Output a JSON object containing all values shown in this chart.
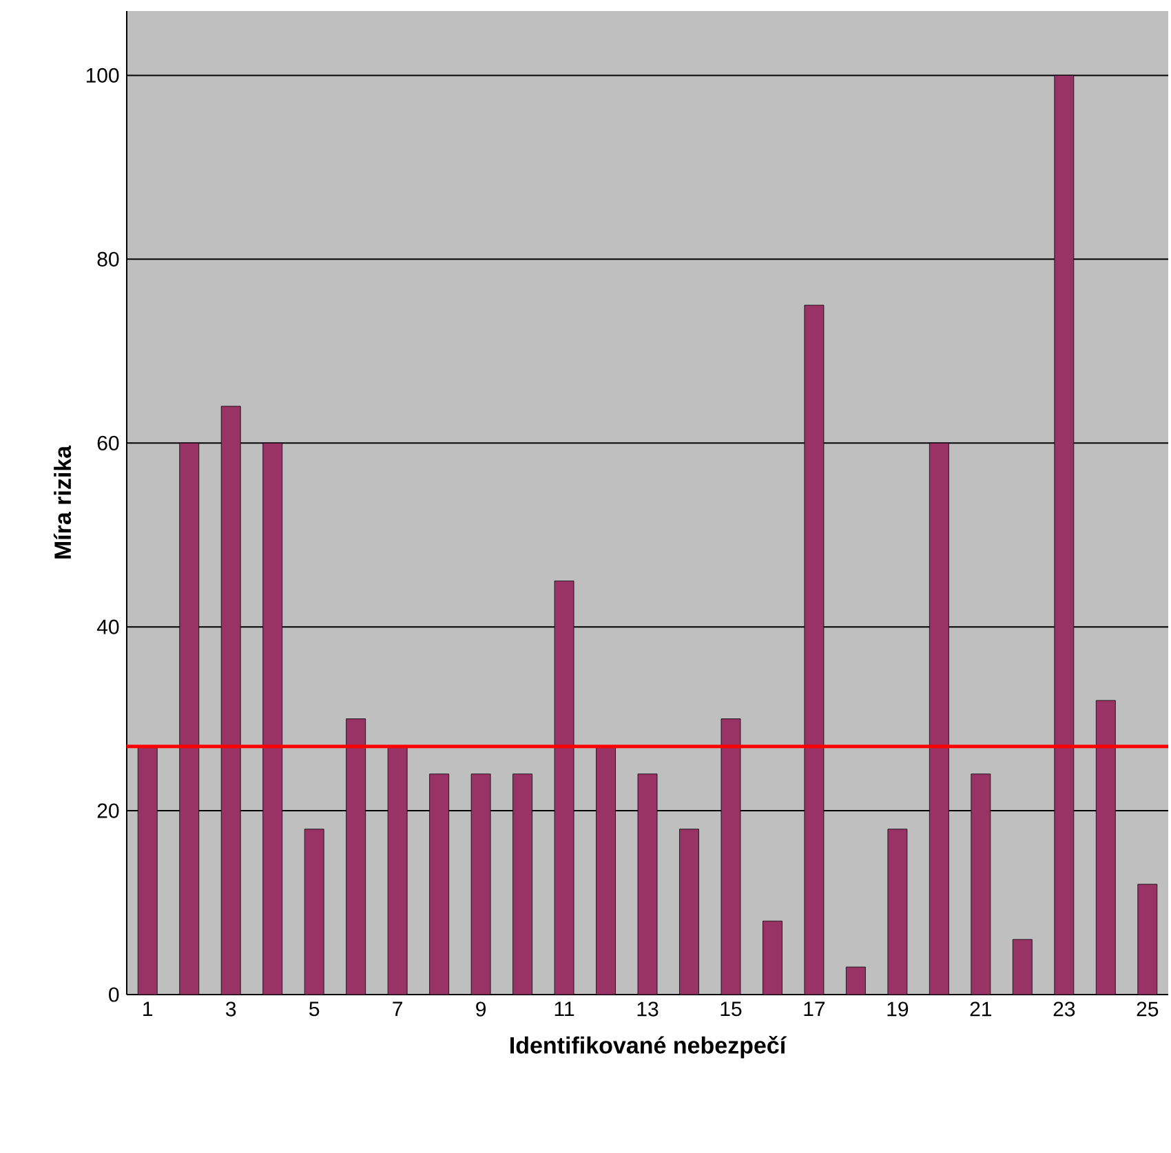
{
  "chart_data": {
    "type": "bar",
    "xlabel": "Identifikované  nebezpečí",
    "ylabel": "Míra rizika",
    "categories": [
      "1",
      null,
      "3",
      null,
      "5",
      null,
      "7",
      null,
      "9",
      null,
      "11",
      null,
      "13",
      null,
      "15",
      null,
      "17",
      null,
      "19",
      null,
      "21",
      null,
      "23",
      null,
      "25"
    ],
    "values": [
      27,
      60,
      64,
      60,
      18,
      30,
      27,
      24,
      24,
      24,
      45,
      27,
      24,
      18,
      30,
      8,
      75,
      3,
      18,
      60,
      24,
      6,
      100,
      32,
      12
    ],
    "color": "#993366",
    "ylim": [
      0,
      107
    ],
    "yticks": [
      0,
      20,
      40,
      60,
      80,
      100
    ],
    "grid": "y",
    "ref_lines": [
      {
        "axis": "y",
        "value": 27,
        "color": "#ff0000"
      }
    ]
  }
}
